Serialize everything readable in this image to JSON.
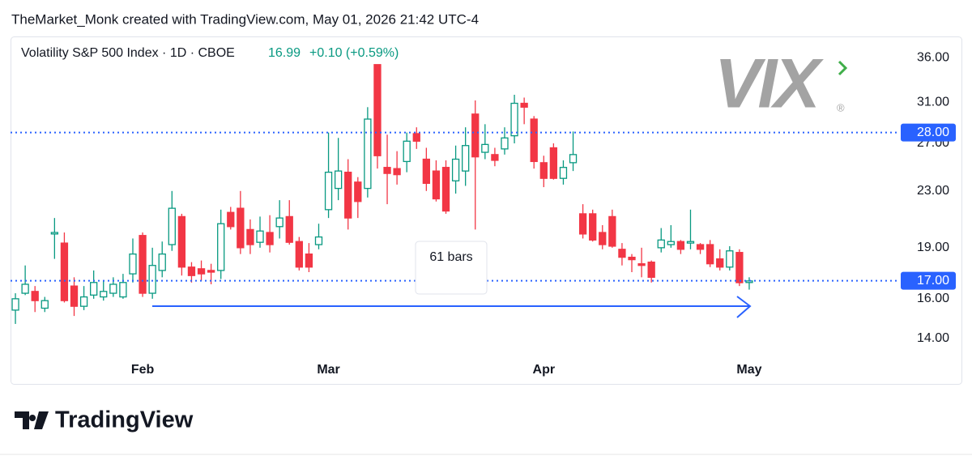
{
  "header": "TheMarket_Monk created with TradingView.com, May 01, 2026 21:42 UTC-4",
  "logo": {
    "symbol": "VIX",
    "mark": "®"
  },
  "footer": "TradingView",
  "chart_data": {
    "type": "candlestick",
    "legend": {
      "name": "Volatility S&P 500 Index · 1D · CBOE",
      "last": 16.99,
      "change": "+0.10 (+0.59%)"
    },
    "categories": [
      null,
      null,
      null,
      null,
      null,
      null,
      null,
      null,
      null,
      null,
      null,
      null,
      null,
      "Feb",
      null,
      null,
      null,
      null,
      null,
      null,
      null,
      null,
      null,
      null,
      null,
      null,
      null,
      null,
      null,
      null,
      null,
      null,
      "Mar",
      null,
      null,
      null,
      null,
      null,
      null,
      null,
      null,
      null,
      null,
      null,
      null,
      null,
      null,
      null,
      null,
      null,
      null,
      null,
      null,
      null,
      "Apr",
      null,
      null,
      null,
      null,
      null,
      null,
      null,
      null,
      null,
      null,
      null,
      null,
      null,
      null,
      null,
      null,
      null,
      null,
      null,
      null,
      "May"
    ],
    "open": [
      15.4,
      16.3,
      16.4,
      15.5,
      19.9,
      19.3,
      16.7,
      15.6,
      16.2,
      16.1,
      16.3,
      16.1,
      17.4,
      19.8,
      16.3,
      17.6,
      19.2,
      21.1,
      17.8,
      17.7,
      17.6,
      17.6,
      21.4,
      21.7,
      20.2,
      19.35,
      20.0,
      20.4,
      21.1,
      19.4,
      18.6,
      19.2,
      21.6,
      23.2,
      24.5,
      23.7,
      23.2,
      35.2,
      24.9,
      24.8,
      25.4,
      27.9,
      25.6,
      24.6,
      24.9,
      23.8,
      24.6,
      29.8,
      26.2,
      26.0,
      26.5,
      27.7,
      30.9,
      29.3,
      25.3,
      26.6,
      24.0,
      25.3,
      21.3,
      21.3,
      20.0,
      21.1,
      18.9,
      18.4,
      18.0,
      18.1,
      19.0,
      19.2,
      19.4,
      19.3,
      19.2,
      19.2,
      18.3,
      17.8,
      18.7,
      16.9
    ],
    "high": [
      16.3,
      17.9,
      16.7,
      16.1,
      21.0,
      20.0,
      17.2,
      16.7,
      17.6,
      17.0,
      17.2,
      17.4,
      19.6,
      20.0,
      19.0,
      19.4,
      23.0,
      21.3,
      18.1,
      18.2,
      18.0,
      21.6,
      21.8,
      23.0,
      20.9,
      21.1,
      21.2,
      22.3,
      22.3,
      19.7,
      19.3,
      20.6,
      28.0,
      27.5,
      25.6,
      24.1,
      30.5,
      35.2,
      27.8,
      26.3,
      28.0,
      28.5,
      26.6,
      25.5,
      25.5,
      26.8,
      28.5,
      31.2,
      28.8,
      26.6,
      28.5,
      31.8,
      31.5,
      29.6,
      25.9,
      27.0,
      25.5,
      28.1,
      22.0,
      21.6,
      20.5,
      21.6,
      19.3,
      18.6,
      19.0,
      18.2,
      20.3,
      20.5,
      19.5,
      21.6,
      19.3,
      19.5,
      18.9,
      19.1,
      18.9,
      17.2
    ],
    "low": [
      14.7,
      16.2,
      15.3,
      15.3,
      18.3,
      15.8,
      15.1,
      15.4,
      16.0,
      15.9,
      16.1,
      16.0,
      16.9,
      16.1,
      16.0,
      17.2,
      18.8,
      17.3,
      16.9,
      17.0,
      16.8,
      17.1,
      20.2,
      18.6,
      18.6,
      19.0,
      18.7,
      19.6,
      19.2,
      17.6,
      17.5,
      18.9,
      21.0,
      22.3,
      20.2,
      21.0,
      22.5,
      24.8,
      22.0,
      23.5,
      24.5,
      26.5,
      23.0,
      22.2,
      21.3,
      22.8,
      23.4,
      20.2,
      25.6,
      25.0,
      26.0,
      27.0,
      28.8,
      24.8,
      23.3,
      23.9,
      23.5,
      24.6,
      19.6,
      19.4,
      18.9,
      19.0,
      17.9,
      17.5,
      17.2,
      16.9,
      18.7,
      19.0,
      18.6,
      18.9,
      18.6,
      17.8,
      17.6,
      17.6,
      16.7,
      16.5
    ],
    "close": [
      16.0,
      16.8,
      15.9,
      15.9,
      20.0,
      15.9,
      15.6,
      16.1,
      16.9,
      16.4,
      16.8,
      16.9,
      18.6,
      16.3,
      17.9,
      18.6,
      21.7,
      17.8,
      17.3,
      17.4,
      17.5,
      20.6,
      20.4,
      19.0,
      19.2,
      20.1,
      19.2,
      21.0,
      19.35,
      17.8,
      17.8,
      19.7,
      24.5,
      24.6,
      21.0,
      22.2,
      29.3,
      25.9,
      24.4,
      24.3,
      27.2,
      27.2,
      23.6,
      22.4,
      21.5,
      25.6,
      26.8,
      25.8,
      26.9,
      25.5,
      27.5,
      30.9,
      30.5,
      25.4,
      24.0,
      24.0,
      24.9,
      26.0,
      19.9,
      19.5,
      19.2,
      19.1,
      18.4,
      18.25,
      17.9,
      17.2,
      19.5,
      19.4,
      18.9,
      19.4,
      18.9,
      18.0,
      17.8,
      18.8,
      16.89,
      16.99
    ],
    "up_color": "#089981",
    "down_color": "#f23645",
    "log_scale": true,
    "ylim": [
      13.0,
      38.7
    ],
    "yticks": [
      {
        "value": 14,
        "label": "14.00"
      },
      {
        "value": 16,
        "label": "16.00"
      },
      {
        "value": 19,
        "label": "19.00"
      },
      {
        "value": 23,
        "label": "23.00"
      },
      {
        "value": 27,
        "label": "27.00"
      },
      {
        "value": 31,
        "label": "31.00"
      },
      {
        "value": 36,
        "label": "36.00"
      }
    ],
    "hlines": [
      {
        "value": 28,
        "label": "28.00"
      },
      {
        "value": 17,
        "label": "17.00"
      }
    ],
    "line_color": "#2962ff",
    "annotation": "61 bars",
    "grid": false
  }
}
